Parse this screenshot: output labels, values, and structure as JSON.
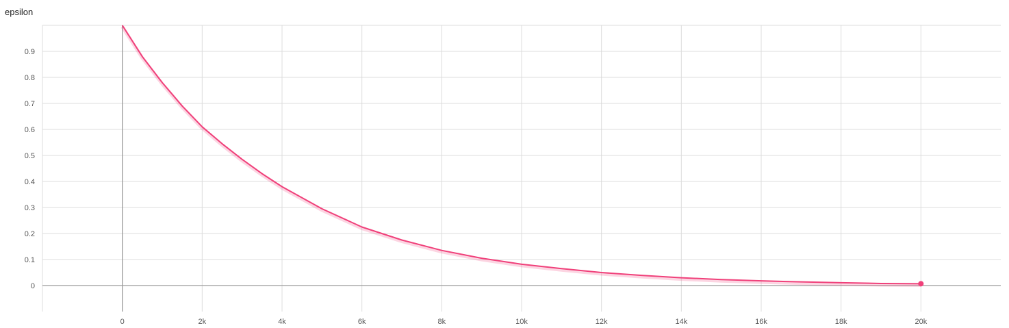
{
  "chart_data": {
    "type": "line",
    "title": "epsilon",
    "xlabel": "",
    "ylabel": "",
    "xlim": [
      -2000,
      22000
    ],
    "ylim": [
      -0.1,
      1.0
    ],
    "grid": true,
    "x_ticks": [
      0,
      2000,
      4000,
      6000,
      8000,
      10000,
      12000,
      14000,
      16000,
      18000,
      20000
    ],
    "x_tick_labels": [
      "0",
      "2k",
      "4k",
      "6k",
      "8k",
      "10k",
      "12k",
      "14k",
      "16k",
      "18k",
      "20k"
    ],
    "y_ticks": [
      0,
      0.1,
      0.2,
      0.3,
      0.4,
      0.5,
      0.6,
      0.7,
      0.8,
      0.9
    ],
    "y_tick_labels": [
      "0",
      "0.1",
      "0.2",
      "0.3",
      "0.4",
      "0.5",
      "0.6",
      "0.7",
      "0.8",
      "0.9"
    ],
    "series": [
      {
        "color": "#f0407a",
        "x": [
          0,
          500,
          1000,
          1500,
          2000,
          2500,
          3000,
          3500,
          4000,
          5000,
          6000,
          7000,
          8000,
          9000,
          10000,
          11000,
          12000,
          13000,
          14000,
          15000,
          16000,
          17000,
          18000,
          19000,
          20000
        ],
        "y": [
          1.0,
          0.88,
          0.78,
          0.69,
          0.61,
          0.545,
          0.485,
          0.43,
          0.38,
          0.295,
          0.225,
          0.175,
          0.135,
          0.105,
          0.082,
          0.065,
          0.05,
          0.039,
          0.03,
          0.023,
          0.018,
          0.014,
          0.011,
          0.008,
          0.007
        ]
      }
    ]
  }
}
